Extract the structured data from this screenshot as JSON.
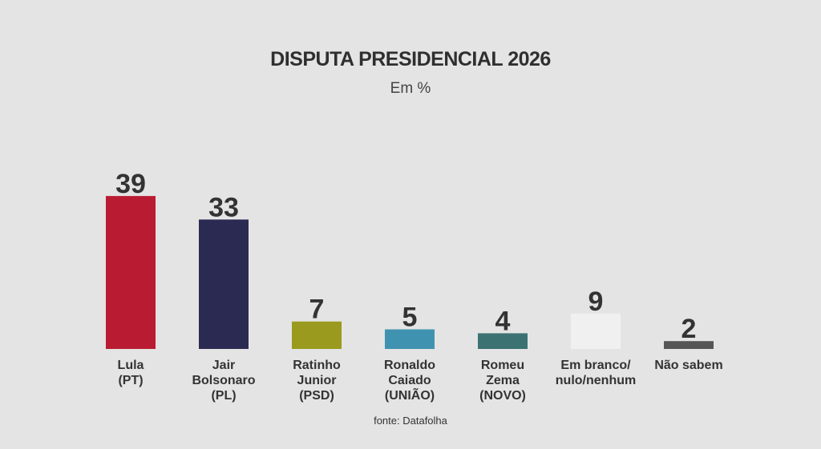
{
  "chart_data": {
    "type": "bar",
    "title": "DISPUTA PRESIDENCIAL 2026",
    "subtitle": "Em %",
    "unit": "%",
    "categories": [
      [
        "Lula",
        "(PT)"
      ],
      [
        "Jair",
        "Bolsonaro",
        "(PL)"
      ],
      [
        "Ratinho",
        "Junior",
        "(PSD)"
      ],
      [
        "Ronaldo",
        "Caiado",
        "(UNIÃO)"
      ],
      [
        "Romeu",
        "Zema",
        "(NOVO)"
      ],
      [
        "Em branco/",
        "nulo/nenhum"
      ],
      [
        "Não sabem"
      ]
    ],
    "values": [
      39,
      33,
      7,
      5,
      4,
      9,
      2
    ],
    "colors": [
      "#b91c32",
      "#2b2a52",
      "#9a9a1e",
      "#3f93b0",
      "#3d7273",
      "#f0f0f0",
      "#555555"
    ],
    "ylim": [
      0,
      40
    ],
    "source": "fonte: Datafolha"
  }
}
